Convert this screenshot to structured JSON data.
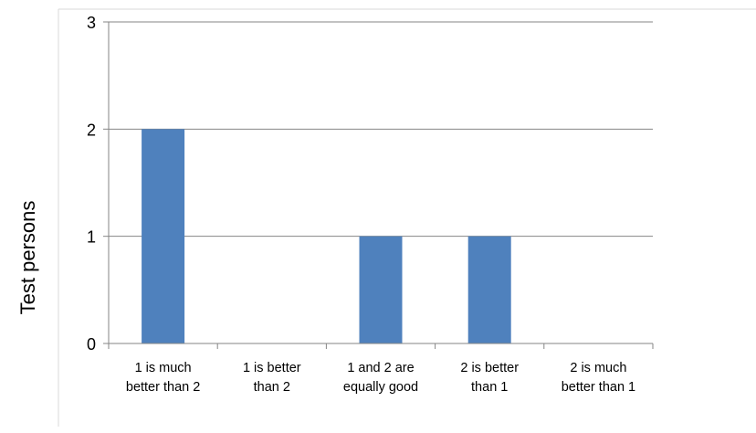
{
  "chart_data": {
    "type": "bar",
    "categories": [
      [
        "1 is much",
        "better than 2"
      ],
      [
        "1 is better",
        "than 2"
      ],
      [
        "1 and 2 are",
        "equally good"
      ],
      [
        "2 is better",
        "than 1"
      ],
      [
        "2 is much",
        "better than 1"
      ]
    ],
    "values": [
      2,
      0,
      1,
      1,
      0
    ],
    "title": "",
    "xlabel": "",
    "ylabel": "Test persons",
    "ylim": [
      0,
      3
    ],
    "yticks": [
      "0",
      "1",
      "2",
      "3"
    ],
    "grid": true,
    "legend": "none",
    "colors": {
      "bar": "#4f81bd",
      "grid": "#868686",
      "axis": "#868686",
      "frame": "#d9d9d9"
    }
  }
}
